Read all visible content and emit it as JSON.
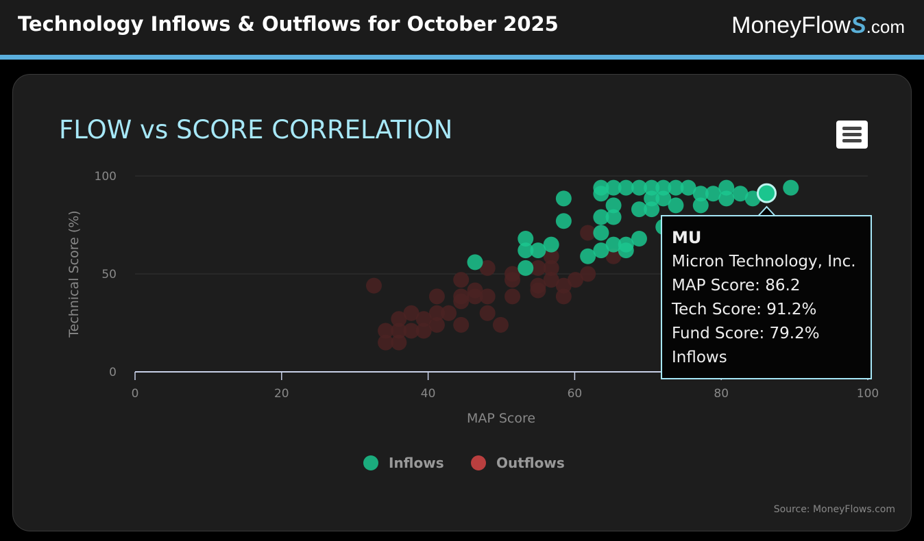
{
  "header": {
    "title": "Technology Inflows & Outflows for October 2025",
    "logo": "MoneyFlows.com"
  },
  "chart_data": {
    "type": "scatter",
    "title": "FLOW vs SCORE CORRELATION",
    "xlabel": "MAP Score",
    "ylabel": "Technical Score (%)",
    "xlim": [
      0,
      100
    ],
    "ylim": [
      0,
      100
    ],
    "xticks": [
      "0",
      "20",
      "40",
      "60",
      "80",
      "100"
    ],
    "yticks": [
      "0",
      "50",
      "100"
    ],
    "legend": {
      "placement": "bottom-center",
      "items": [
        "Inflows",
        "Outflows"
      ]
    },
    "series": [
      {
        "name": "Inflows",
        "color": "#1bc58e",
        "points": [
          [
            46.4,
            56
          ],
          [
            53.3,
            68
          ],
          [
            53.3,
            62
          ],
          [
            53.3,
            53
          ],
          [
            55,
            62
          ],
          [
            56.8,
            65
          ],
          [
            58.5,
            88.5
          ],
          [
            58.5,
            77
          ],
          [
            61.8,
            59
          ],
          [
            63.6,
            94
          ],
          [
            63.6,
            91
          ],
          [
            63.6,
            79
          ],
          [
            63.6,
            71
          ],
          [
            63.6,
            62
          ],
          [
            65.3,
            94
          ],
          [
            65.3,
            85
          ],
          [
            65.3,
            79
          ],
          [
            65.3,
            65
          ],
          [
            67,
            94
          ],
          [
            67,
            65
          ],
          [
            67,
            62
          ],
          [
            68.8,
            94
          ],
          [
            68.8,
            83
          ],
          [
            68.8,
            68
          ],
          [
            70.5,
            94
          ],
          [
            70.5,
            88.5
          ],
          [
            70.5,
            83
          ],
          [
            72.1,
            94
          ],
          [
            72.1,
            88.5
          ],
          [
            72.1,
            74
          ],
          [
            73.8,
            94
          ],
          [
            73.8,
            85
          ],
          [
            75.5,
            94
          ],
          [
            77.2,
            91
          ],
          [
            77.2,
            85
          ],
          [
            78.9,
            91
          ],
          [
            80.7,
            94
          ],
          [
            80.7,
            88.5
          ],
          [
            82.6,
            91
          ],
          [
            84.3,
            88.5
          ],
          [
            86.2,
            91.2
          ],
          [
            89.5,
            94
          ]
        ]
      },
      {
        "name": "Outflows",
        "color": "#d64545",
        "points": [
          [
            32.6,
            44
          ],
          [
            34.2,
            21
          ],
          [
            34.2,
            15
          ],
          [
            36,
            27
          ],
          [
            36,
            21
          ],
          [
            36,
            15
          ],
          [
            37.7,
            30
          ],
          [
            37.7,
            21
          ],
          [
            39.4,
            27
          ],
          [
            39.4,
            21
          ],
          [
            41.2,
            38.5
          ],
          [
            41.2,
            30
          ],
          [
            41.2,
            24
          ],
          [
            42.8,
            30
          ],
          [
            44.5,
            47
          ],
          [
            44.5,
            38.5
          ],
          [
            44.5,
            36
          ],
          [
            44.5,
            24
          ],
          [
            46.4,
            41.6
          ],
          [
            46.4,
            38.5
          ],
          [
            48.1,
            53
          ],
          [
            48.1,
            38.5
          ],
          [
            48.1,
            30
          ],
          [
            49.9,
            24
          ],
          [
            51.5,
            50
          ],
          [
            51.5,
            47
          ],
          [
            51.5,
            38.5
          ],
          [
            55,
            53
          ],
          [
            55,
            44
          ],
          [
            55,
            41.6
          ],
          [
            56.8,
            59
          ],
          [
            56.8,
            53
          ],
          [
            56.8,
            47
          ],
          [
            58.5,
            44
          ],
          [
            58.5,
            38.5
          ],
          [
            60.1,
            47
          ],
          [
            61.8,
            71
          ],
          [
            61.8,
            50
          ],
          [
            65.3,
            59
          ]
        ]
      }
    ],
    "highlighted": {
      "x": 86.2,
      "y": 91.2
    }
  },
  "tooltip": {
    "symbol": "MU",
    "name": "Micron Technology, Inc.",
    "map": "MAP Score: 86.2",
    "tech": "Tech Score: 91.2%",
    "fund": "Fund Score: 79.2%",
    "flow": "Inflows"
  },
  "source": "Source: MoneyFlows.com"
}
